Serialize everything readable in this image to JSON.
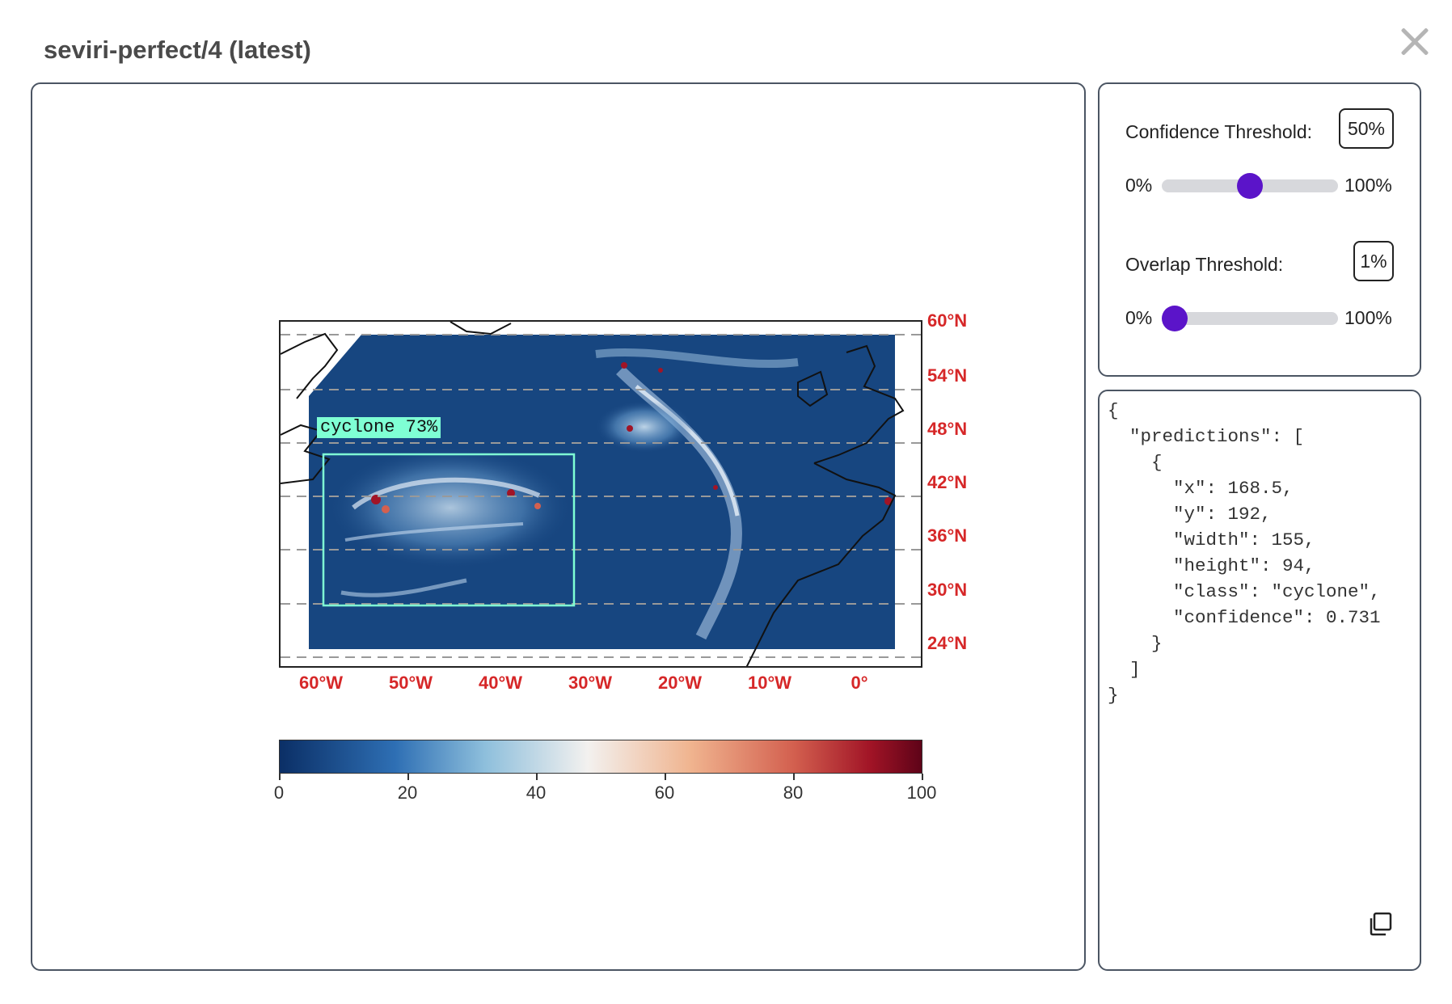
{
  "modal": {
    "title": "seviri-perfect/4 (latest)"
  },
  "map": {
    "lat_labels": [
      "60°N",
      "54°N",
      "48°N",
      "42°N",
      "36°N",
      "30°N",
      "24°N"
    ],
    "lon_labels": [
      "60°W",
      "50°W",
      "40°W",
      "30°W",
      "20°W",
      "10°W",
      "0°"
    ],
    "detection_label": "cyclone 73%",
    "colorbar": {
      "ticks": [
        "0",
        "20",
        "40",
        "60",
        "80",
        "100"
      ],
      "colors": [
        "#0b2f66",
        "#2e6fb4",
        "#8ebfdc",
        "#f3f1ef",
        "#f0b48f",
        "#d3604f",
        "#a11426",
        "#5e0318"
      ]
    },
    "box_color": "#7fffd4",
    "label_color": "#d62728"
  },
  "controls": {
    "confidence": {
      "label": "Confidence Threshold:",
      "value_text": "50%",
      "value": 0.5,
      "min_label": "0%",
      "max_label": "100%"
    },
    "overlap": {
      "label": "Overlap Threshold:",
      "value_text": "1%",
      "value": 0.01,
      "min_label": "0%",
      "max_label": "100%"
    },
    "accent_color": "#5b14c9"
  },
  "json_output": {
    "text": "{\n  \"predictions\": [\n    {\n      \"x\": 168.5,\n      \"y\": 192,\n      \"width\": 155,\n      \"height\": 94,\n      \"class\": \"cyclone\",\n      \"confidence\": 0.731\n    }\n  ]\n}",
    "copy_icon": "copy-icon"
  }
}
